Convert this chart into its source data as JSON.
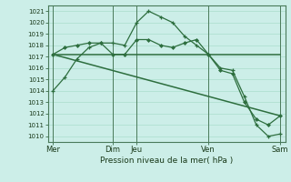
{
  "xlabel": "Pression niveau de la mer( hPa )",
  "bg_color": "#cceee8",
  "grid_color": "#aaddcc",
  "line_color": "#2d6e3e",
  "vline_color": "#4a7a5a",
  "ylim": [
    1009.5,
    1021.5
  ],
  "yticks": [
    1010,
    1011,
    1012,
    1013,
    1014,
    1015,
    1016,
    1017,
    1018,
    1019,
    1020,
    1021
  ],
  "day_labels": [
    "Mer",
    "Dim",
    "Jeu",
    "Ven",
    "Sam"
  ],
  "day_positions": [
    0,
    60,
    84,
    156,
    228
  ],
  "vline_positions": [
    0,
    60,
    84,
    156,
    228
  ],
  "xlim": [
    -5,
    233
  ],
  "line1_x": [
    0,
    12,
    24,
    36,
    48,
    60,
    72,
    84,
    96,
    108,
    120,
    132,
    144,
    156,
    168,
    180,
    192,
    204,
    216,
    228
  ],
  "line1_y": [
    1014.0,
    1015.2,
    1016.8,
    1017.8,
    1018.2,
    1018.2,
    1018.0,
    1020.0,
    1021.0,
    1020.5,
    1020.0,
    1018.8,
    1018.0,
    1017.2,
    1016.0,
    1015.8,
    1013.5,
    1011.0,
    1010.0,
    1010.2
  ],
  "line2_x": [
    0,
    12,
    24,
    36,
    48,
    60,
    72,
    84,
    96,
    108,
    120,
    132,
    144,
    156,
    168,
    180,
    192,
    204,
    216,
    228
  ],
  "line2_y": [
    1017.2,
    1017.8,
    1018.0,
    1018.2,
    1018.2,
    1017.2,
    1017.2,
    1018.5,
    1018.5,
    1018.0,
    1017.8,
    1018.2,
    1018.5,
    1017.2,
    1015.8,
    1015.5,
    1013.0,
    1011.5,
    1011.0,
    1011.8
  ],
  "line3_x": [
    0,
    228
  ],
  "line3_y": [
    1017.2,
    1017.2
  ],
  "line4_x": [
    0,
    228
  ],
  "line4_y": [
    1017.2,
    1011.8
  ],
  "ytick_fontsize": 5.0,
  "xtick_fontsize": 6.0,
  "xlabel_fontsize": 6.5
}
